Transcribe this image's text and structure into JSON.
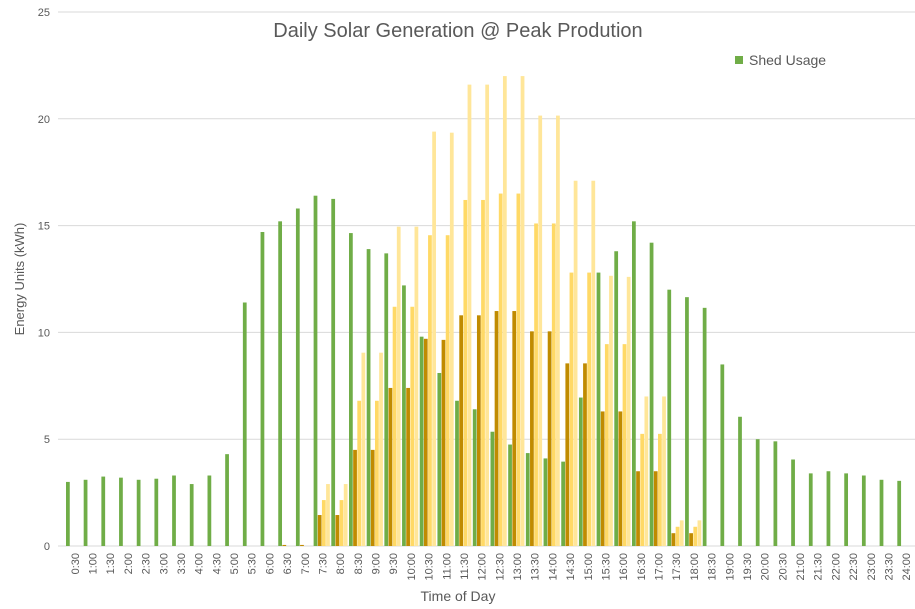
{
  "chart_data": {
    "type": "bar",
    "title": "Daily Solar Generation @ Peak Prodution",
    "x_label": "Time of Day",
    "y_label": "Energy Units (kWh)",
    "categories": [
      "0:30",
      "1:00",
      "1:30",
      "2:00",
      "2:30",
      "3:00",
      "3:30",
      "4:00",
      "4:30",
      "5:00",
      "5:30",
      "6:00",
      "6:30",
      "7:00",
      "7:30",
      "8:00",
      "8:30",
      "9:00",
      "9:30",
      "10:00",
      "10:30",
      "11:00",
      "11:30",
      "12:00",
      "12:30",
      "13:00",
      "13:30",
      "14:00",
      "14:30",
      "15:00",
      "15:30",
      "16:00",
      "16:30",
      "17:00",
      "17:30",
      "18:00",
      "18:30",
      "19:00",
      "19:30",
      "20:00",
      "20:30",
      "21:00",
      "21:30",
      "22:00",
      "22:30",
      "23:00",
      "23:30",
      "24:00"
    ],
    "series": [
      {
        "name": "Shed Usage",
        "color": "#70ad47",
        "values": [
          3.0,
          3.1,
          3.25,
          3.2,
          3.1,
          3.15,
          3.3,
          2.9,
          3.3,
          4.3,
          11.4,
          14.7,
          15.2,
          15.8,
          16.4,
          16.25,
          14.65,
          13.9,
          13.7,
          12.2,
          9.8,
          8.1,
          6.8,
          6.4,
          5.35,
          4.75,
          4.35,
          4.1,
          3.95,
          6.95,
          12.8,
          13.8,
          15.2,
          14.2,
          12.0,
          11.65,
          11.15,
          8.5,
          6.05,
          5.0,
          4.9,
          4.05,
          3.4,
          3.5,
          3.4,
          3.3,
          3.1,
          3.05
        ]
      },
      {
        "color": "#c08b00",
        "values": [
          0,
          0,
          0,
          0,
          0,
          0,
          0,
          0,
          0,
          0,
          0,
          0,
          0.05,
          0.05,
          1.45,
          1.45,
          4.5,
          4.5,
          7.4,
          7.4,
          9.7,
          9.65,
          10.8,
          10.8,
          11.0,
          11.0,
          10.05,
          10.05,
          8.55,
          8.55,
          6.3,
          6.3,
          3.5,
          3.5,
          0.6,
          0.6,
          0,
          0,
          0,
          0,
          0,
          0,
          0,
          0,
          0,
          0,
          0,
          0
        ]
      },
      {
        "color": "#ffd966",
        "values": [
          0,
          0,
          0,
          0,
          0,
          0,
          0,
          0,
          0,
          0,
          0,
          0,
          0,
          0,
          2.15,
          2.15,
          6.8,
          6.8,
          11.2,
          11.2,
          14.55,
          14.55,
          16.2,
          16.2,
          16.5,
          16.5,
          15.1,
          15.1,
          12.8,
          12.8,
          9.45,
          9.45,
          5.25,
          5.25,
          0.9,
          0.9,
          0,
          0,
          0,
          0,
          0,
          0,
          0,
          0,
          0,
          0,
          0,
          0
        ]
      },
      {
        "color": "#ffe699",
        "values": [
          0,
          0,
          0,
          0,
          0,
          0,
          0,
          0,
          0,
          0,
          0,
          0,
          0,
          0,
          2.9,
          2.9,
          9.05,
          9.05,
          14.95,
          14.95,
          19.4,
          19.35,
          21.6,
          21.6,
          22.0,
          22.0,
          20.15,
          20.15,
          17.1,
          17.1,
          12.65,
          12.6,
          7.0,
          7.0,
          1.2,
          1.2,
          0,
          0,
          0,
          0,
          0,
          0,
          0,
          0,
          0,
          0,
          0,
          0
        ]
      }
    ],
    "ylim": [
      0,
      25
    ],
    "yticks": [
      0,
      5,
      10,
      15,
      20,
      25
    ],
    "grid": true,
    "legend": "upper right"
  }
}
